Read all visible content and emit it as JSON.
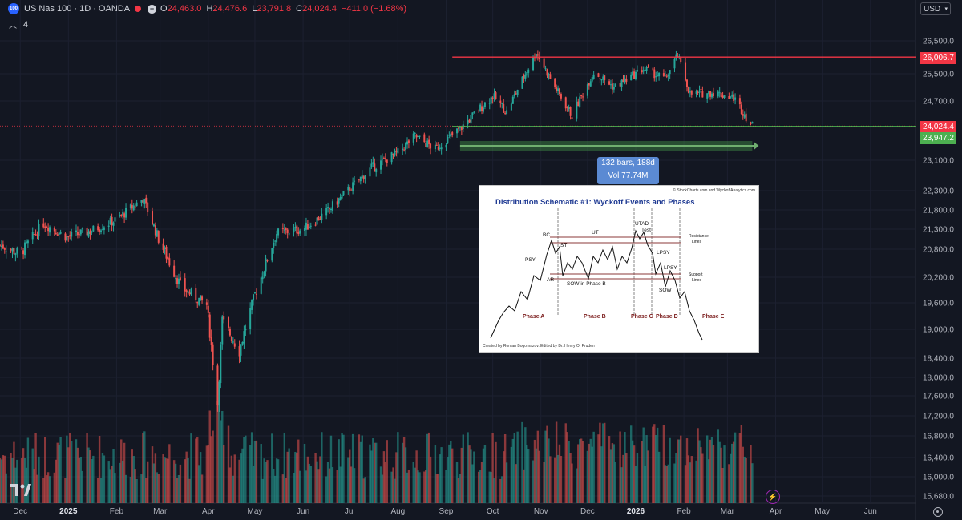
{
  "header": {
    "symbol_badge": "100",
    "title": "US Nas 100 · 1D · OANDA",
    "market_status_icon": "minus-circle-icon",
    "ohlc": {
      "o_label": "O",
      "o_value": "24,463.0",
      "h_label": "H",
      "h_value": "24,476.6",
      "l_label": "L",
      "l_value": "23,791.8",
      "c_label": "C",
      "c_value": "24,024.4"
    },
    "change": "−411.0 (−1.68%)",
    "indicator_count": "4"
  },
  "currency": "USD",
  "price_labels": {
    "resistance": "26,006.7",
    "last": "24,024.4",
    "support": "23,947.2"
  },
  "measure_tooltip": {
    "line1": "132 bars, 188d",
    "line2": "Vol 77.74M"
  },
  "schematic": {
    "title": "Distribution Schematic #1: Wyckoff Events and Phases",
    "copyright": "© StockCharts.com and WyckoffAnalytics.com",
    "credit": "Created by Roman Bogomazov. Edited by Dr. Henry O. Pruden",
    "labels": {
      "bc": "BC",
      "st": "ST",
      "ut": "UT",
      "utad": "UTAD",
      "test": "Test",
      "psy": "PSY",
      "ar": "AR",
      "sow_b": "SOW in Phase B",
      "lpsy1": "LPSY",
      "lpsy2": "LPSY",
      "sow": "SOW",
      "resistance1": "Resistance",
      "resistance2": "Lines",
      "support1": "Support",
      "support2": "Lines"
    },
    "phases": [
      "Phase A",
      "Phase B",
      "Phase C",
      "Phase D",
      "Phase E"
    ]
  },
  "colors": {
    "background": "#131722",
    "up": "#26a69a",
    "down": "#ef5350",
    "resistance_line": "#f23645",
    "support_line": "#4caf50",
    "measure_box": "#5b8ad3"
  },
  "chart_data": {
    "type": "candlestick",
    "x_range": [
      "2024-11-18",
      "2026-06-30"
    ],
    "y_range": [
      15680,
      26500
    ],
    "x_tick_labels": [
      "Dec",
      "2025",
      "Feb",
      "Mar",
      "Apr",
      "May",
      "Jun",
      "Jul",
      "Aug",
      "Sep",
      "Oct",
      "Nov",
      "Dec",
      "2026",
      "Feb",
      "Mar",
      "Apr",
      "May",
      "Jun"
    ],
    "y_tick_labels": [
      "26,500.0",
      "25,500.0",
      "24,700.0",
      "23,100.0",
      "22,300.0",
      "21,800.0",
      "21,300.0",
      "20,800.0",
      "20,200.0",
      "19,600.0",
      "19,000.0",
      "18,400.0",
      "18,000.0",
      "17,600.0",
      "17,200.0",
      "16,800.0",
      "16,400.0",
      "16,000.0",
      "15,680.0"
    ],
    "y_tick_values": [
      26500,
      25500,
      24700,
      23100,
      22300,
      21800,
      21300,
      20800,
      20200,
      19600,
      19000,
      18400,
      18000,
      17600,
      17200,
      16800,
      16400,
      16000,
      15680
    ],
    "close_path": [
      [
        "2024-11-18",
        20900
      ],
      [
        "2024-12-01",
        20700
      ],
      [
        "2024-12-16",
        21450
      ],
      [
        "2024-12-31",
        21100
      ],
      [
        "2025-01-15",
        21250
      ],
      [
        "2025-02-01",
        21550
      ],
      [
        "2025-02-18",
        22100
      ],
      [
        "2025-03-01",
        20950
      ],
      [
        "2025-03-15",
        19950
      ],
      [
        "2025-03-31",
        19550
      ],
      [
        "2025-04-07",
        17450
      ],
      [
        "2025-04-10",
        19200
      ],
      [
        "2025-04-21",
        18550
      ],
      [
        "2025-05-01",
        19800
      ],
      [
        "2025-05-15",
        21200
      ],
      [
        "2025-06-01",
        21300
      ],
      [
        "2025-06-15",
        21700
      ],
      [
        "2025-07-01",
        22350
      ],
      [
        "2025-07-15",
        22900
      ],
      [
        "2025-08-01",
        23300
      ],
      [
        "2025-08-12",
        23750
      ],
      [
        "2025-08-25",
        23400
      ],
      [
        "2025-09-10",
        23950
      ],
      [
        "2025-10-01",
        24850
      ],
      [
        "2025-10-10",
        24400
      ],
      [
        "2025-10-29",
        26150
      ],
      [
        "2025-11-10",
        25100
      ],
      [
        "2025-11-21",
        24300
      ],
      [
        "2025-12-05",
        25550
      ],
      [
        "2025-12-18",
        25100
      ],
      [
        "2026-01-06",
        25650
      ],
      [
        "2026-01-20",
        25350
      ],
      [
        "2026-01-28",
        26050
      ],
      [
        "2026-02-05",
        24900
      ],
      [
        "2026-02-20",
        24950
      ],
      [
        "2026-03-05",
        24800
      ],
      [
        "2026-03-17",
        24024
      ]
    ],
    "horizontal_lines": [
      26006.7,
      24024.4
    ],
    "range_start": "2025-09-10",
    "range_end": "2026-03-17"
  }
}
